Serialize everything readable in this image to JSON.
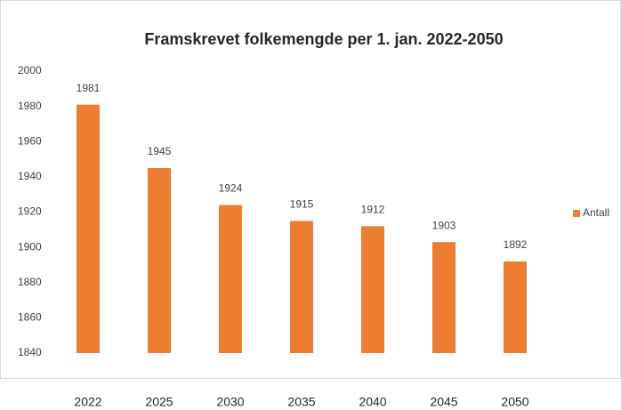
{
  "chart_data": {
    "type": "bar",
    "title": "Framskrevet folkemengde per 1. jan. 2022-2050",
    "categories": [
      "2022",
      "2025",
      "2030",
      "2035",
      "2040",
      "2045",
      "2050"
    ],
    "series": [
      {
        "name": "Antall",
        "color": "#ed7d31",
        "values": [
          1981,
          1945,
          1924,
          1915,
          1912,
          1903,
          1892
        ]
      }
    ],
    "ylim": [
      1840,
      2000
    ],
    "yticks": [
      1840,
      1860,
      1880,
      1900,
      1920,
      1940,
      1960,
      1980,
      2000
    ],
    "grid": false,
    "legend": "right"
  }
}
